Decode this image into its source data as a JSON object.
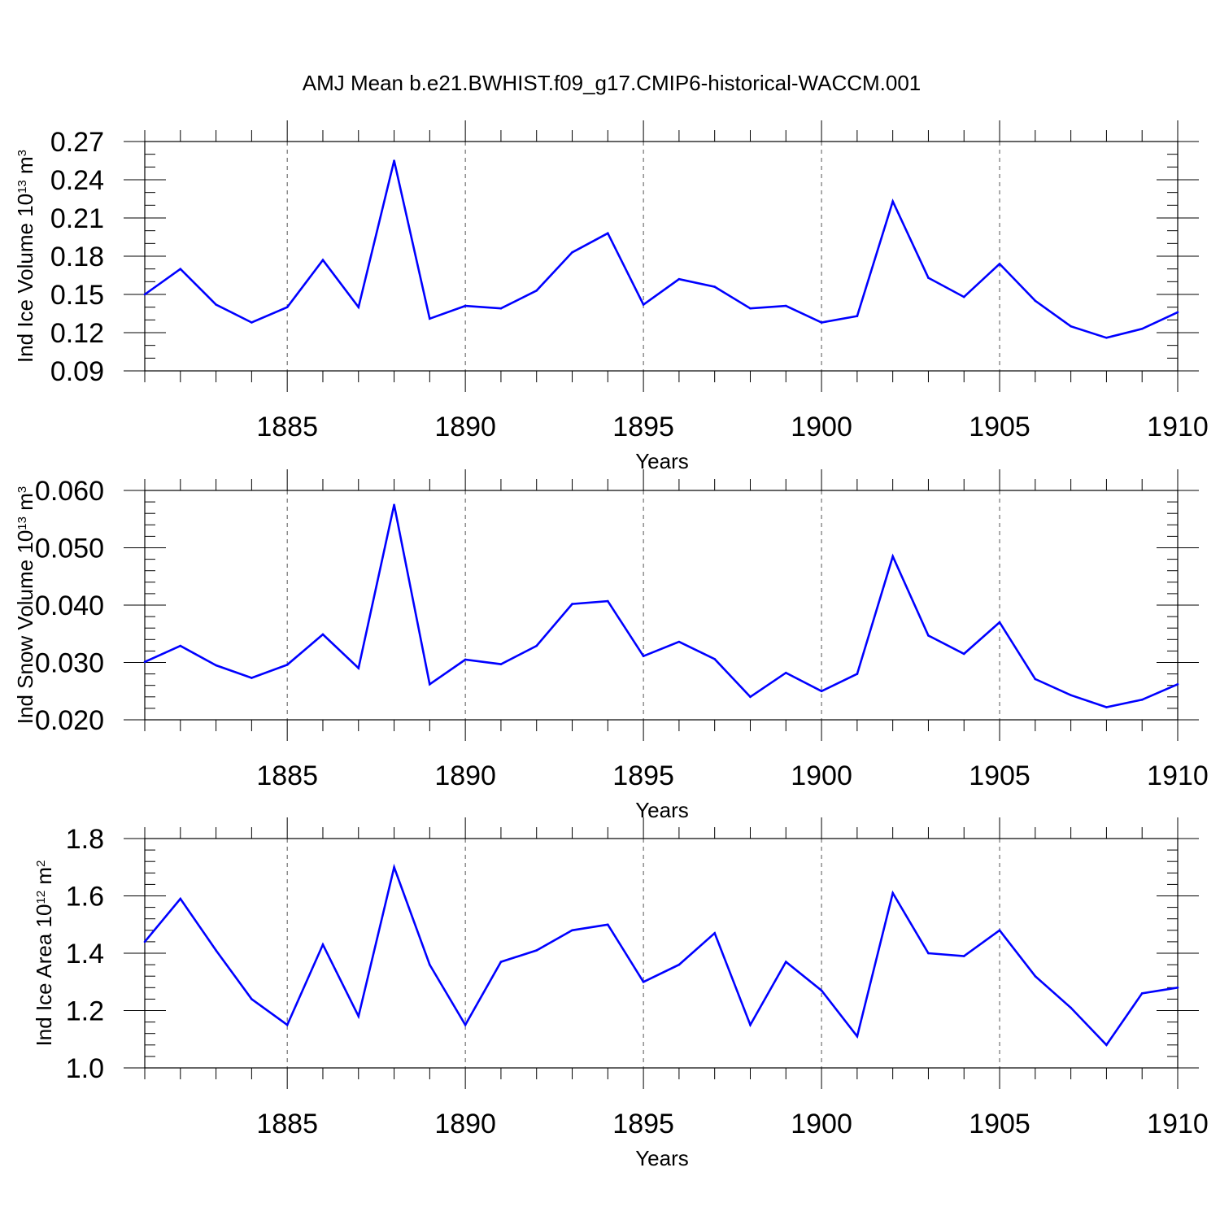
{
  "title": "AMJ Mean b.e21.BWHIST.f09_g17.CMIP6-historical-WACCM.001",
  "colors": {
    "line": "#0000ff",
    "axis": "#000000",
    "grid": "#555555"
  },
  "chart_data": [
    {
      "type": "line",
      "ylabel_main": "Ind Ice Volume 10",
      "ylabel_exp": "13",
      "ylabel_unit": "m",
      "ylabel_unit_exp": "3",
      "xlabel": "Years",
      "xlim": [
        1881,
        1910
      ],
      "ylim": [
        0.09,
        0.27
      ],
      "yticks": [
        0.09,
        0.12,
        0.15,
        0.18,
        0.21,
        0.24,
        0.27
      ],
      "ytick_labels": [
        "0.09",
        "0.12",
        "0.15",
        "0.18",
        "0.21",
        "0.24",
        "0.27"
      ],
      "yminor_step": 0.01,
      "xticks": [
        1885,
        1890,
        1895,
        1900,
        1905,
        1910
      ],
      "xtick_labels": [
        "1885",
        "1890",
        "1895",
        "1900",
        "1905",
        "1910"
      ],
      "grid": "dashed vertical at major x ticks",
      "series": [
        {
          "name": "Ind Ice Volume",
          "x": [
            1881,
            1882,
            1883,
            1884,
            1885,
            1886,
            1887,
            1888,
            1889,
            1890,
            1891,
            1892,
            1893,
            1894,
            1895,
            1896,
            1897,
            1898,
            1899,
            1900,
            1901,
            1902,
            1903,
            1904,
            1905,
            1906,
            1907,
            1908,
            1909,
            1910
          ],
          "values": [
            0.15,
            0.17,
            0.142,
            0.128,
            0.14,
            0.177,
            0.14,
            0.255,
            0.131,
            0.141,
            0.139,
            0.153,
            0.183,
            0.198,
            0.142,
            0.162,
            0.156,
            0.139,
            0.141,
            0.128,
            0.133,
            0.223,
            0.163,
            0.148,
            0.174,
            0.145,
            0.125,
            0.116,
            0.123,
            0.136
          ]
        }
      ]
    },
    {
      "type": "line",
      "ylabel_main": "Ind Snow Volume 10",
      "ylabel_exp": "13",
      "ylabel_unit": "m",
      "ylabel_unit_exp": "3",
      "xlabel": "Years",
      "xlim": [
        1881,
        1910
      ],
      "ylim": [
        0.02,
        0.06
      ],
      "yticks": [
        0.02,
        0.03,
        0.04,
        0.05,
        0.06
      ],
      "ytick_labels": [
        "0.020",
        "0.030",
        "0.040",
        "0.050",
        "0.060"
      ],
      "yminor_step": 0.002,
      "xticks": [
        1885,
        1890,
        1895,
        1900,
        1905,
        1910
      ],
      "xtick_labels": [
        "1885",
        "1890",
        "1895",
        "1900",
        "1905",
        "1910"
      ],
      "grid": "dashed vertical at major x ticks",
      "series": [
        {
          "name": "Ind Snow Volume",
          "x": [
            1881,
            1882,
            1883,
            1884,
            1885,
            1886,
            1887,
            1888,
            1889,
            1890,
            1891,
            1892,
            1893,
            1894,
            1895,
            1896,
            1897,
            1898,
            1899,
            1900,
            1901,
            1902,
            1903,
            1904,
            1905,
            1906,
            1907,
            1908,
            1909,
            1910
          ],
          "values": [
            0.0301,
            0.0329,
            0.0295,
            0.0273,
            0.0296,
            0.0349,
            0.029,
            0.0575,
            0.0262,
            0.0305,
            0.0297,
            0.0329,
            0.0402,
            0.0407,
            0.0311,
            0.0336,
            0.0306,
            0.024,
            0.0282,
            0.025,
            0.028,
            0.0485,
            0.0347,
            0.0315,
            0.037,
            0.0271,
            0.0243,
            0.0222,
            0.0235,
            0.0262
          ]
        }
      ]
    },
    {
      "type": "line",
      "ylabel_main": "Ind Ice Area 10",
      "ylabel_exp": "12",
      "ylabel_unit": "m",
      "ylabel_unit_exp": "2",
      "xlabel": "Years",
      "xlim": [
        1881,
        1910
      ],
      "ylim": [
        1.0,
        1.8
      ],
      "yticks": [
        1.0,
        1.2,
        1.4,
        1.6,
        1.8
      ],
      "ytick_labels": [
        "1.0",
        "1.2",
        "1.4",
        "1.6",
        "1.8"
      ],
      "yminor_step": 0.04,
      "xticks": [
        1885,
        1890,
        1895,
        1900,
        1905,
        1910
      ],
      "xtick_labels": [
        "1885",
        "1890",
        "1895",
        "1900",
        "1905",
        "1910"
      ],
      "grid": "dashed vertical at major x ticks",
      "series": [
        {
          "name": "Ind Ice Area",
          "x": [
            1881,
            1882,
            1883,
            1884,
            1885,
            1886,
            1887,
            1888,
            1889,
            1890,
            1891,
            1892,
            1893,
            1894,
            1895,
            1896,
            1897,
            1898,
            1899,
            1900,
            1901,
            1902,
            1903,
            1904,
            1905,
            1906,
            1907,
            1908,
            1909,
            1910
          ],
          "values": [
            1.44,
            1.59,
            1.41,
            1.24,
            1.15,
            1.43,
            1.18,
            1.7,
            1.36,
            1.15,
            1.37,
            1.41,
            1.48,
            1.5,
            1.3,
            1.36,
            1.47,
            1.15,
            1.37,
            1.27,
            1.11,
            1.61,
            1.4,
            1.39,
            1.48,
            1.32,
            1.21,
            1.08,
            1.26,
            1.28
          ]
        }
      ]
    }
  ]
}
